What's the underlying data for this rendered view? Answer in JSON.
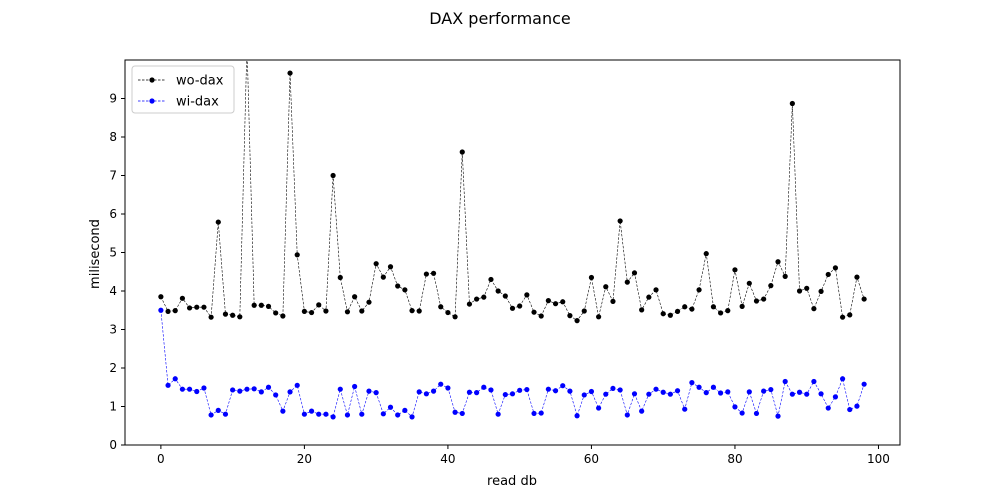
{
  "chart_data": {
    "type": "line",
    "title": "DAX performance",
    "xlabel": "read db",
    "ylabel": "milisecond",
    "xlim": [
      -5,
      103
    ],
    "ylim": [
      0,
      10
    ],
    "xticks": [
      0,
      20,
      40,
      60,
      80,
      100
    ],
    "yticks": [
      0,
      1,
      2,
      3,
      4,
      5,
      6,
      7,
      8,
      9
    ],
    "grid": false,
    "legend_position": "top-left",
    "x": [
      0,
      1,
      2,
      3,
      4,
      5,
      6,
      7,
      8,
      9,
      10,
      11,
      12,
      13,
      14,
      15,
      16,
      17,
      18,
      19,
      20,
      21,
      22,
      23,
      24,
      25,
      26,
      27,
      28,
      29,
      30,
      31,
      32,
      33,
      34,
      35,
      36,
      37,
      38,
      39,
      40,
      41,
      42,
      43,
      44,
      45,
      46,
      47,
      48,
      49,
      50,
      51,
      52,
      53,
      54,
      55,
      56,
      57,
      58,
      59,
      60,
      61,
      62,
      63,
      64,
      65,
      66,
      67,
      68,
      69,
      70,
      71,
      72,
      73,
      74,
      75,
      76,
      77,
      78,
      79,
      80,
      81,
      82,
      83,
      84,
      85,
      86,
      87,
      88,
      89,
      90,
      91,
      92,
      93,
      94,
      95,
      96,
      97,
      98
    ],
    "series": [
      {
        "name": "wo-dax",
        "color": "#000000",
        "values": [
          3.85,
          3.47,
          3.49,
          3.81,
          3.56,
          3.58,
          3.58,
          3.32,
          5.79,
          3.4,
          3.37,
          3.33,
          10.4,
          3.63,
          3.63,
          3.6,
          3.43,
          3.35,
          9.66,
          4.94,
          3.47,
          3.44,
          3.64,
          3.48,
          7.0,
          4.35,
          3.46,
          3.85,
          3.48,
          3.71,
          4.71,
          4.36,
          4.63,
          4.13,
          4.03,
          3.49,
          3.48,
          4.44,
          4.46,
          3.59,
          3.44,
          3.33,
          7.61,
          3.66,
          3.79,
          3.84,
          4.3,
          4.0,
          3.87,
          3.55,
          3.61,
          3.9,
          3.45,
          3.35,
          3.75,
          3.67,
          3.72,
          3.36,
          3.23,
          3.48,
          4.35,
          3.33,
          4.11,
          3.73,
          5.82,
          4.23,
          4.47,
          3.51,
          3.84,
          4.03,
          3.41,
          3.37,
          3.47,
          3.59,
          3.53,
          4.03,
          4.97,
          3.59,
          3.43,
          3.49,
          4.55,
          3.6,
          4.2,
          3.74,
          3.79,
          4.14,
          4.76,
          4.38,
          8.87,
          4.0,
          4.07,
          3.54,
          3.99,
          4.43,
          4.6,
          3.32,
          3.38,
          4.36,
          3.79
        ]
      },
      {
        "name": "wi-dax",
        "color": "#0000ff",
        "values": [
          3.5,
          1.55,
          1.72,
          1.45,
          1.45,
          1.39,
          1.48,
          0.78,
          0.9,
          0.8,
          1.43,
          1.4,
          1.45,
          1.46,
          1.38,
          1.5,
          1.3,
          0.88,
          1.38,
          1.55,
          0.8,
          0.88,
          0.8,
          0.8,
          0.73,
          1.45,
          0.78,
          1.52,
          0.8,
          1.4,
          1.36,
          0.81,
          0.98,
          0.78,
          0.9,
          0.73,
          1.38,
          1.33,
          1.4,
          1.58,
          1.48,
          0.85,
          0.82,
          1.37,
          1.36,
          1.5,
          1.43,
          0.8,
          1.31,
          1.33,
          1.42,
          1.44,
          0.82,
          0.83,
          1.45,
          1.41,
          1.54,
          1.4,
          0.76,
          1.3,
          1.39,
          0.96,
          1.32,
          1.47,
          1.43,
          0.78,
          1.33,
          0.88,
          1.32,
          1.45,
          1.37,
          1.32,
          1.41,
          0.93,
          1.62,
          1.5,
          1.36,
          1.5,
          1.35,
          1.38,
          0.99,
          0.83,
          1.38,
          0.82,
          1.4,
          1.44,
          0.75,
          1.65,
          1.32,
          1.37,
          1.32,
          1.65,
          1.33,
          0.96,
          1.25,
          1.72,
          0.92,
          1.01,
          1.58
        ]
      }
    ]
  }
}
